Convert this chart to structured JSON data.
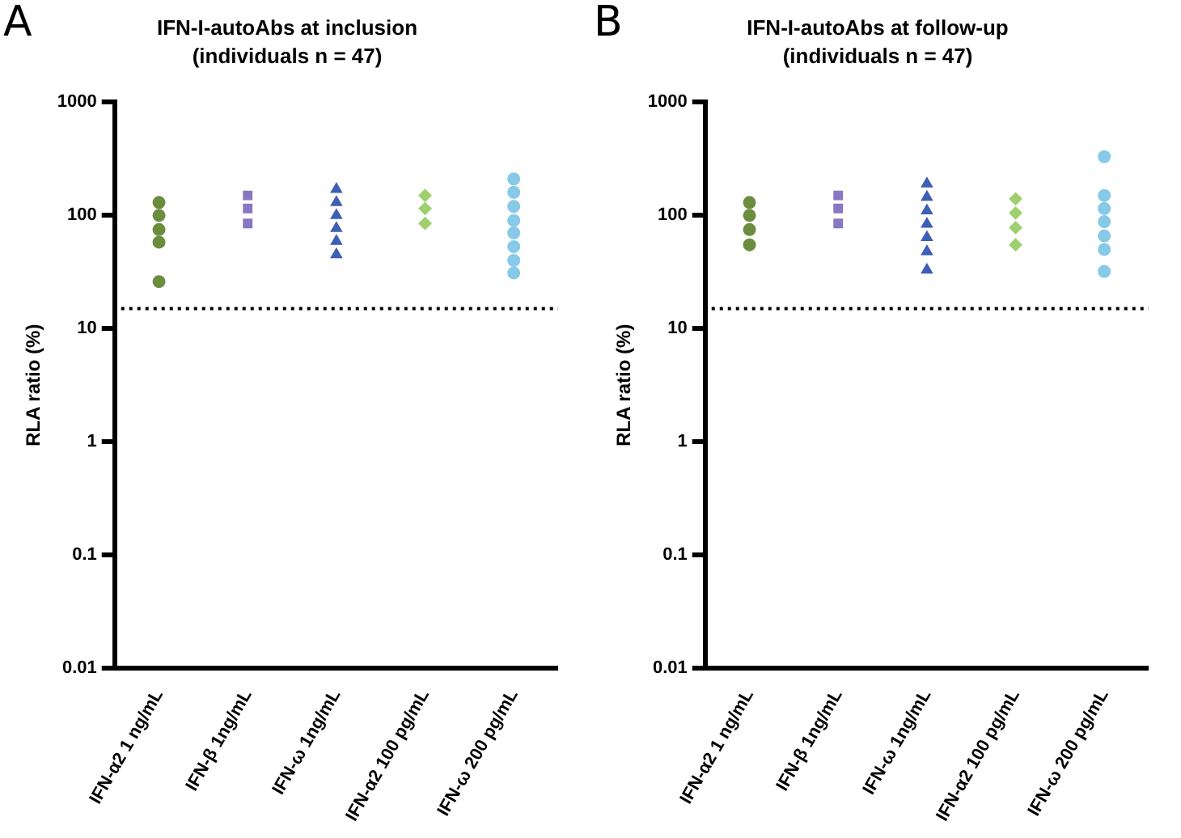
{
  "chart_data": [
    {
      "type": "scatter",
      "title": "IFN-I-autoAbs at inclusion",
      "subtitle": "(individuals n = 47)",
      "annotations": [
        "A"
      ],
      "ylabel": "RLA ratio (%)",
      "log": "y",
      "ylim": [
        0.01,
        1000
      ],
      "yticks": [
        0.01,
        0.1,
        1,
        10,
        100,
        1000
      ],
      "grid": false,
      "legend": false,
      "categories": [
        "IFN-α2 1 ng/mL",
        "IFN-β 1ng/mL",
        "IFN-ω 1ng/mL",
        "IFN-α2 100 pg/mL",
        "IFN-ω 200 pg/mL"
      ],
      "ref_lines": [
        {
          "axis": "y",
          "value": 15,
          "line_style": "dotted",
          "color": "#000000"
        }
      ],
      "series": [
        {
          "color": "#6b8e3e",
          "marker": "circle",
          "x": [
            "IFN-α2 1 ng/mL",
            "IFN-α2 1 ng/mL",
            "IFN-α2 1 ng/mL",
            "IFN-α2 1 ng/mL",
            "IFN-α2 1 ng/mL"
          ],
          "values": [
            130,
            100,
            75,
            58,
            26
          ]
        },
        {
          "color": "#8878c3",
          "marker": "square",
          "x": [
            "IFN-β 1ng/mL",
            "IFN-β 1ng/mL",
            "IFN-β 1ng/mL"
          ],
          "values": [
            150,
            115,
            85
          ]
        },
        {
          "color": "#3d5fb5",
          "marker": "triangle",
          "x": [
            "IFN-ω 1ng/mL",
            "IFN-ω 1ng/mL",
            "IFN-ω 1ng/mL",
            "IFN-ω 1ng/mL",
            "IFN-ω 1ng/mL",
            "IFN-ω 1ng/mL"
          ],
          "values": [
            170,
            130,
            100,
            77,
            59,
            45
          ]
        },
        {
          "color": "#9fcf6e",
          "marker": "diamond",
          "x": [
            "IFN-α2 100 pg/mL",
            "IFN-α2 100 pg/mL",
            "IFN-α2 100 pg/mL"
          ],
          "values": [
            150,
            115,
            85
          ]
        },
        {
          "color": "#86c9e8",
          "marker": "circle",
          "x": [
            "IFN-ω 200 pg/mL",
            "IFN-ω 200 pg/mL",
            "IFN-ω 200 pg/mL",
            "IFN-ω 200 pg/mL",
            "IFN-ω 200 pg/mL",
            "IFN-ω 200 pg/mL",
            "IFN-ω 200 pg/mL",
            "IFN-ω 200 pg/mL"
          ],
          "values": [
            210,
            160,
            120,
            90,
            70,
            53,
            40,
            31
          ]
        }
      ]
    },
    {
      "type": "scatter",
      "title": "IFN-I-autoAbs at follow-up",
      "subtitle": "(individuals n = 47)",
      "annotations": [
        "B"
      ],
      "ylabel": "RLA ratio (%)",
      "log": "y",
      "ylim": [
        0.01,
        1000
      ],
      "yticks": [
        0.01,
        0.1,
        1,
        10,
        100,
        1000
      ],
      "grid": false,
      "legend": false,
      "categories": [
        "IFN-α2 1 ng/mL",
        "IFN-β 1ng/mL",
        "IFN-ω 1ng/mL",
        "IFN-α2 100 pg/mL",
        "IFN-ω 200 pg/mL"
      ],
      "ref_lines": [
        {
          "axis": "y",
          "value": 15,
          "line_style": "dotted",
          "color": "#000000"
        }
      ],
      "series": [
        {
          "color": "#6b8e3e",
          "marker": "circle",
          "x": [
            "IFN-α2 1 ng/mL",
            "IFN-α2 1 ng/mL",
            "IFN-α2 1 ng/mL",
            "IFN-α2 1 ng/mL"
          ],
          "values": [
            130,
            100,
            75,
            55
          ]
        },
        {
          "color": "#8878c3",
          "marker": "square",
          "x": [
            "IFN-β 1ng/mL",
            "IFN-β 1ng/mL",
            "IFN-β 1ng/mL"
          ],
          "values": [
            150,
            115,
            85
          ]
        },
        {
          "color": "#3d5fb5",
          "marker": "triangle",
          "x": [
            "IFN-ω 1ng/mL",
            "IFN-ω 1ng/mL",
            "IFN-ω 1ng/mL",
            "IFN-ω 1ng/mL",
            "IFN-ω 1ng/mL",
            "IFN-ω 1ng/mL",
            "IFN-ω 1ng/mL"
          ],
          "values": [
            190,
            145,
            110,
            84,
            64,
            48,
            33
          ]
        },
        {
          "color": "#9fcf6e",
          "marker": "diamond",
          "x": [
            "IFN-α2 100 pg/mL",
            "IFN-α2 100 pg/mL",
            "IFN-α2 100 pg/mL",
            "IFN-α2 100 pg/mL"
          ],
          "values": [
            140,
            105,
            78,
            55
          ]
        },
        {
          "color": "#86c9e8",
          "marker": "circle",
          "x": [
            "IFN-ω 200 pg/mL",
            "IFN-ω 200 pg/mL",
            "IFN-ω 200 pg/mL",
            "IFN-ω 200 pg/mL",
            "IFN-ω 200 pg/mL",
            "IFN-ω 200 pg/mL",
            "IFN-ω 200 pg/mL"
          ],
          "values": [
            330,
            150,
            115,
            88,
            66,
            50,
            32
          ]
        }
      ]
    }
  ]
}
